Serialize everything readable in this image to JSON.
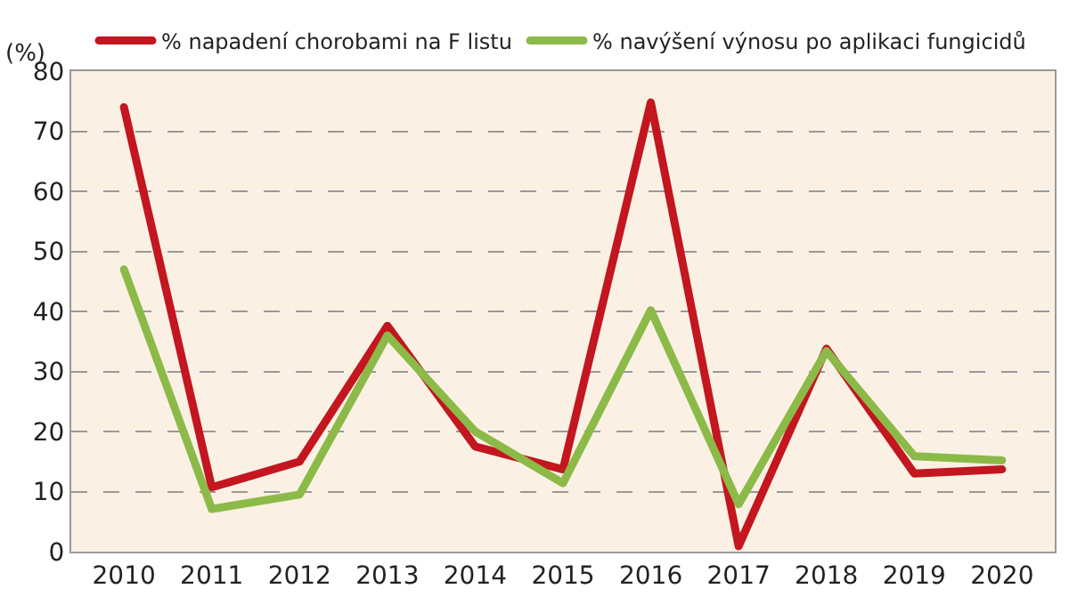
{
  "chart_data": {
    "type": "line",
    "ylabel": "(%)",
    "categories": [
      "2010",
      "2011",
      "2012",
      "2013",
      "2014",
      "2015",
      "2016",
      "2017",
      "2018",
      "2019",
      "2020"
    ],
    "series": [
      {
        "name": "% napadení chorobami na F listu",
        "color": "#c3161f",
        "values": [
          74,
          10.7,
          15,
          37.6,
          17.5,
          13.7,
          74.8,
          0.9,
          33.8,
          13,
          13.7
        ]
      },
      {
        "name": "% navýšení výnosu po aplikaci fungicidů",
        "color": "#8cba48",
        "values": [
          47,
          7.1,
          9.5,
          36,
          20,
          11.4,
          40.2,
          7.9,
          33.4,
          15.9,
          15.2
        ]
      }
    ],
    "ylim": [
      0,
      80
    ],
    "yticks": [
      0,
      10,
      20,
      30,
      40,
      50,
      60,
      70,
      80
    ],
    "grid": "y",
    "legend": "top",
    "marker": "none",
    "line_style": "solid"
  }
}
